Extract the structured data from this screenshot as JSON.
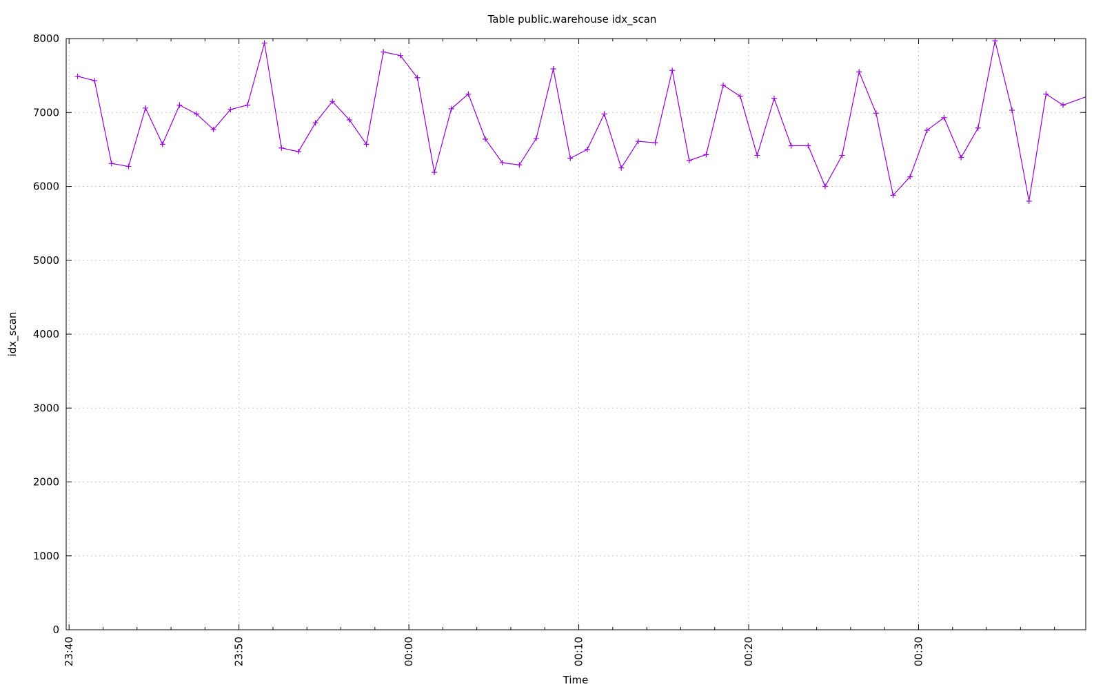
{
  "chart_data": {
    "type": "line",
    "title": "Table public.warehouse idx_scan",
    "xlabel": "Time",
    "ylabel": "idx_scan",
    "x_tick_labels": [
      "23:40",
      "23:50",
      "00:00",
      "00:10",
      "00:20",
      "00:30"
    ],
    "x_tick_minutes": [
      0,
      10,
      20,
      30,
      40,
      50
    ],
    "xlim_minutes": [
      -0.17,
      59.84
    ],
    "ylim": [
      0,
      8000
    ],
    "y_ticks": [
      0,
      1000,
      2000,
      3000,
      4000,
      5000,
      6000,
      7000,
      8000
    ],
    "grid": true,
    "series": [
      {
        "color": "#9400d3",
        "marker": "plus",
        "x_minutes": [
          0.5,
          1.5,
          2.5,
          3.5,
          4.5,
          5.5,
          6.5,
          7.5,
          8.5,
          9.5,
          10.5,
          11.5,
          12.5,
          13.5,
          14.5,
          15.5,
          16.5,
          17.5,
          18.5,
          19.5,
          20.5,
          21.5,
          22.5,
          23.5,
          24.5,
          25.5,
          26.5,
          27.5,
          28.5,
          29.5,
          30.5,
          31.5,
          32.5,
          33.5,
          34.5,
          35.5,
          36.5,
          37.5,
          38.5,
          39.5,
          40.5,
          41.5,
          42.5,
          43.5,
          44.5,
          45.5,
          46.5,
          47.5,
          48.5,
          49.5,
          50.5,
          51.5,
          52.5,
          53.5,
          54.5,
          55.5,
          56.5,
          57.5,
          58.5,
          59.84
        ],
        "values": [
          7490,
          7430,
          6310,
          6270,
          7060,
          6570,
          7100,
          6980,
          6770,
          7040,
          7100,
          7940,
          6520,
          6470,
          6860,
          7150,
          6900,
          6570,
          7820,
          7770,
          7470,
          6190,
          7050,
          7250,
          6640,
          6320,
          6290,
          6650,
          7590,
          6380,
          6500,
          6980,
          6250,
          6610,
          6590,
          7570,
          6350,
          6430,
          7370,
          7220,
          6420,
          7190,
          6550,
          6550,
          6000,
          6420,
          7550,
          6990,
          5880,
          6130,
          6760,
          6930,
          6390,
          6790,
          7970,
          7030,
          5800,
          7250,
          7100,
          7210
        ]
      }
    ]
  }
}
